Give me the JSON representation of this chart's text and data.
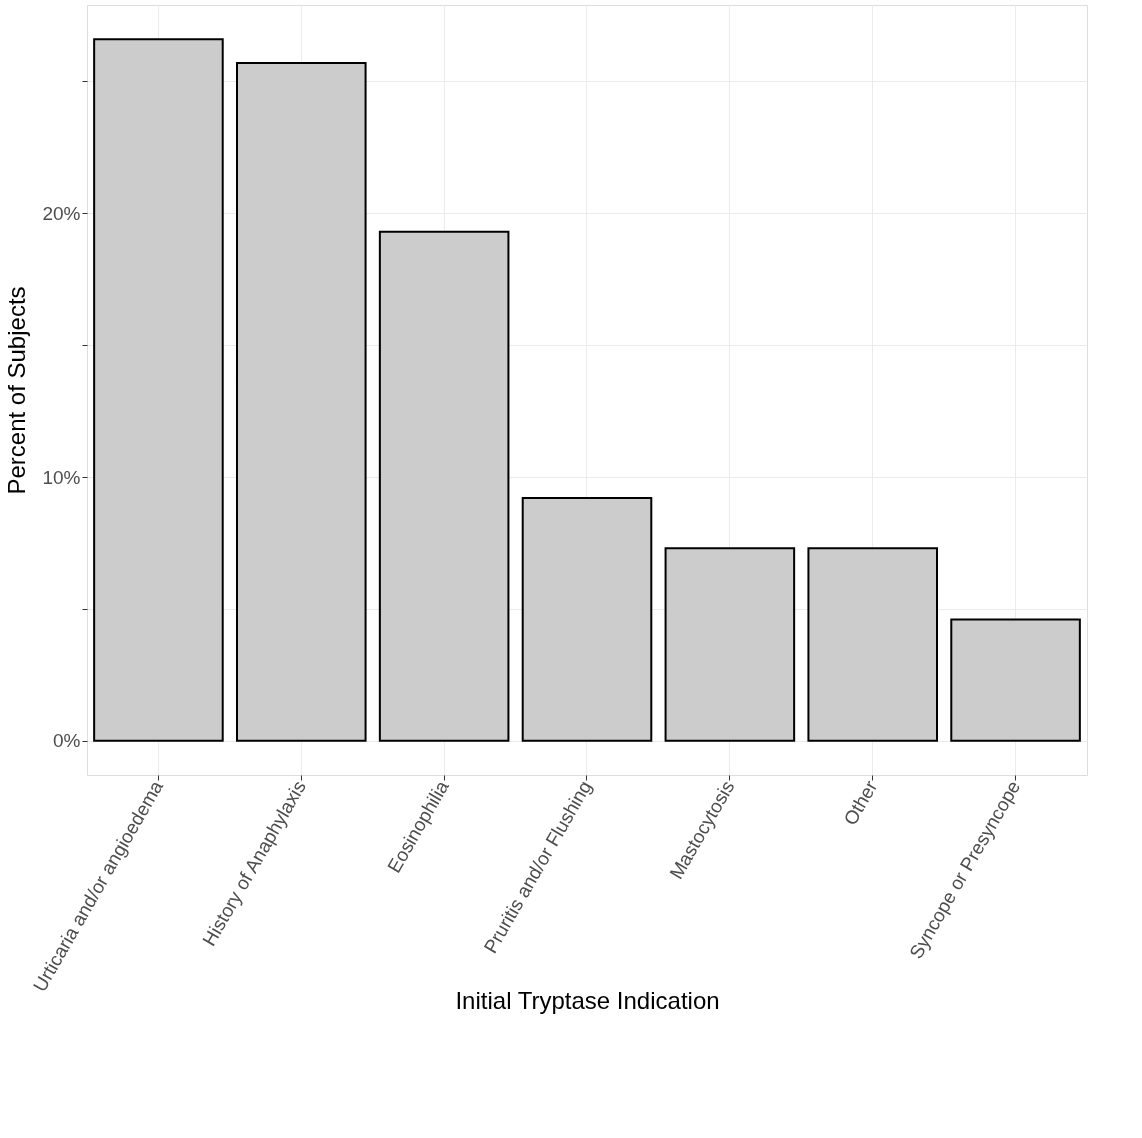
{
  "chart_data": {
    "type": "bar",
    "xlabel": "Initial Tryptase Indication",
    "ylabel": "Percent of Subjects",
    "categories": [
      "Urticaria and/or angioedema",
      "History of Anaphylaxis",
      "Eosinophilia",
      "Pruritis and/or Flushing",
      "Mastocytosis",
      "Other",
      "Syncope or Presyncope"
    ],
    "values": [
      26.6,
      25.7,
      19.3,
      9.2,
      7.3,
      7.3,
      4.6
    ],
    "color": "#cccccc",
    "ylim": [
      -1.3,
      27.9
    ],
    "yticks": [
      {
        "value": 0,
        "label": "0%"
      },
      {
        "value": 5,
        "label": null
      },
      {
        "value": 10,
        "label": "10%"
      },
      {
        "value": 15,
        "label": null
      },
      {
        "value": 20,
        "label": "20%"
      },
      {
        "value": 25,
        "label": null
      }
    ],
    "grid": true
  }
}
